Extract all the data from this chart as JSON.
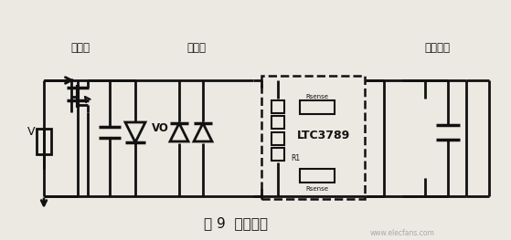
{
  "title": "图 9  电路框图",
  "label_fufanjie": "防反接",
  "label_fanlangyong": "防浪涌",
  "label_dianyuanbianhuan": "电源变换",
  "label_ltc": "LTC3789",
  "label_vo": "VO",
  "label_v": "V",
  "label_rsense_top": "Rsense",
  "label_r1": "R1",
  "label_rsense_bot": "Rsense",
  "bg_color": "#ece9e2",
  "line_color": "#111111",
  "watermark": "www.elecfans.com"
}
